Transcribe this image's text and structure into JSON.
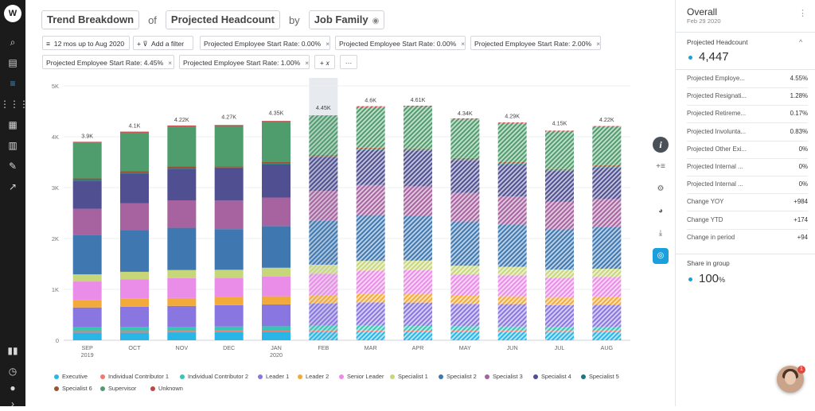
{
  "nav": {
    "logo": "W",
    "items": [
      {
        "name": "search-icon",
        "glyph": "⌕"
      },
      {
        "name": "book-icon",
        "glyph": "▤"
      },
      {
        "name": "list-icon",
        "glyph": "≡"
      },
      {
        "name": "grid-icon",
        "glyph": "⋮⋮⋮"
      },
      {
        "name": "tiles-icon",
        "glyph": "▦"
      },
      {
        "name": "cards-icon",
        "glyph": "▥"
      },
      {
        "name": "pen-icon",
        "glyph": "✎"
      },
      {
        "name": "export-icon",
        "glyph": "↗"
      }
    ],
    "bottom": [
      {
        "name": "bar-chart-icon",
        "glyph": "▮▮"
      },
      {
        "name": "clock-icon",
        "glyph": "◷"
      },
      {
        "name": "user-icon",
        "glyph": "●"
      },
      {
        "name": "expand-icon",
        "glyph": "›"
      }
    ]
  },
  "header": {
    "view": "Trend Breakdown",
    "of": "of",
    "metric": "Projected Headcount",
    "by": "by",
    "dimension": "Job Family"
  },
  "filters": {
    "time": "12 mos up to Aug 2020",
    "add": "Add a filter",
    "chips": [
      "Projected Employee Start Rate: 0.00%",
      "Projected Employee Start Rate: 0.00%",
      "Projected Employee Start Rate: 2.00%",
      "Projected Employee Start Rate: 4.45%",
      "Projected Employee Start Rate: 1.00%"
    ],
    "formula": "+ 𝑥",
    "more": "···",
    "close_glyph": "×"
  },
  "chart_data": {
    "type": "bar",
    "stacked": true,
    "title": "",
    "xlabel": "",
    "ylabel": "",
    "ylim": [
      0,
      5000
    ],
    "y_ticks": [
      "0",
      "1K",
      "2K",
      "3K",
      "4K",
      "5K"
    ],
    "categories": [
      "SEP 2019",
      "OCT",
      "NOV",
      "DEC",
      "JAN 2020",
      "FEB",
      "MAR",
      "APR",
      "MAY",
      "JUN",
      "JUL",
      "AUG"
    ],
    "category_labels": [
      [
        "SEP",
        "2019"
      ],
      [
        "OCT",
        ""
      ],
      [
        "NOV",
        ""
      ],
      [
        "DEC",
        ""
      ],
      [
        "JAN",
        "2020"
      ],
      [
        "FEB",
        ""
      ],
      [
        "MAR",
        ""
      ],
      [
        "APR",
        ""
      ],
      [
        "MAY",
        ""
      ],
      [
        "JUN",
        ""
      ],
      [
        "JUL",
        ""
      ],
      [
        "AUG",
        ""
      ]
    ],
    "projected_from_index": 5,
    "highlighted_index": 5,
    "totals": [
      3900,
      4100,
      4220,
      4270,
      4350,
      4450,
      4600,
      4610,
      4340,
      4290,
      4150,
      4220
    ],
    "total_labels": [
      "3.9K",
      "4.1K",
      "4.22K",
      "4.27K",
      "4.35K",
      "4.45K",
      "4.6K",
      "4.61K",
      "4.34K",
      "4.29K",
      "4.15K",
      "4.22K"
    ],
    "series": [
      {
        "name": "Executive",
        "color": "#29b6e6",
        "values": [
          150,
          150,
          155,
          160,
          165,
          170,
          170,
          165,
          165,
          160,
          155,
          160
        ]
      },
      {
        "name": "Individual Contributor 1",
        "color": "#f2786e",
        "values": [
          30,
          30,
          30,
          30,
          30,
          30,
          30,
          30,
          30,
          30,
          30,
          30
        ]
      },
      {
        "name": "Individual Contributor 2",
        "color": "#37c6b6",
        "values": [
          75,
          80,
          80,
          80,
          80,
          85,
          85,
          85,
          80,
          80,
          75,
          75
        ]
      },
      {
        "name": "Leader 1",
        "color": "#8a76e0",
        "values": [
          390,
          400,
          410,
          420,
          430,
          440,
          460,
          460,
          440,
          440,
          430,
          430
        ]
      },
      {
        "name": "Leader 2",
        "color": "#f2aa3a",
        "values": [
          150,
          155,
          155,
          155,
          160,
          160,
          165,
          165,
          160,
          155,
          150,
          150
        ]
      },
      {
        "name": "Senior Leader",
        "color": "#ea8de8",
        "values": [
          360,
          380,
          390,
          380,
          390,
          420,
          460,
          470,
          420,
          410,
          390,
          400
        ]
      },
      {
        "name": "Specialist 1",
        "color": "#c8d67a",
        "values": [
          140,
          150,
          160,
          160,
          170,
          180,
          190,
          190,
          170,
          170,
          160,
          160
        ]
      },
      {
        "name": "Specialist 2",
        "color": "#3f78b0",
        "values": [
          780,
          820,
          830,
          800,
          820,
          860,
          900,
          880,
          870,
          830,
          790,
          820
        ]
      },
      {
        "name": "Specialist 3",
        "color": "#a7639f",
        "values": [
          510,
          530,
          540,
          560,
          560,
          590,
          590,
          580,
          560,
          550,
          540,
          550
        ]
      },
      {
        "name": "Specialist 4",
        "color": "#4f4f91",
        "values": [
          550,
          580,
          620,
          630,
          650,
          660,
          690,
          700,
          640,
          630,
          600,
          620
        ]
      },
      {
        "name": "Specialist 5",
        "color": "#1f7680",
        "values": [
          20,
          20,
          20,
          20,
          20,
          20,
          20,
          20,
          20,
          20,
          20,
          20
        ]
      },
      {
        "name": "Specialist 6",
        "color": "#9a5332",
        "values": [
          25,
          25,
          25,
          25,
          25,
          25,
          25,
          25,
          25,
          25,
          25,
          25
        ]
      },
      {
        "name": "Supervisor",
        "color": "#4f9c6c",
        "values": [
          710,
          760,
          785,
          790,
          790,
          770,
          795,
          820,
          760,
          760,
          735,
          750
        ]
      },
      {
        "name": "Unknown",
        "color": "#c24444",
        "values": [
          10,
          20,
          20,
          20,
          20,
          10,
          20,
          20,
          20,
          20,
          20,
          20
        ]
      }
    ]
  },
  "tools": [
    {
      "name": "info-button",
      "glyph": "i",
      "style": "dark"
    },
    {
      "name": "add-series-button",
      "glyph": "+≡",
      "style": ""
    },
    {
      "name": "settings-button",
      "glyph": "⚙",
      "style": ""
    },
    {
      "name": "palette-button",
      "glyph": "◕",
      "style": ""
    },
    {
      "name": "download-button",
      "glyph": "⤓",
      "style": ""
    },
    {
      "name": "screenshot-button",
      "glyph": "◎",
      "style": "blue"
    }
  ],
  "panel": {
    "title": "Overall",
    "date": "Feb 29 2020",
    "kebab": "⋮",
    "section1": "Projected Headcount",
    "caret": "^",
    "headcount": "4,447",
    "rows": [
      {
        "label": "Projected Employe...",
        "value": "4.55%"
      },
      {
        "label": "Projected Resignati...",
        "value": "1.28%"
      },
      {
        "label": "Projected Retireme...",
        "value": "0.17%"
      },
      {
        "label": "Projected Involunta...",
        "value": "0.83%"
      },
      {
        "label": "Projected Other Exi...",
        "value": "0%"
      },
      {
        "label": "Projected Internal ...",
        "value": "0%"
      },
      {
        "label": "Projected Internal ...",
        "value": "0%"
      },
      {
        "label": "Change YOY",
        "value": "+984"
      },
      {
        "label": "Change YTD",
        "value": "+174"
      },
      {
        "label": "Change in period",
        "value": "+94"
      }
    ],
    "section2": "Share in group",
    "share": "100",
    "share_unit": "%"
  },
  "chat": {
    "badge": "1"
  }
}
